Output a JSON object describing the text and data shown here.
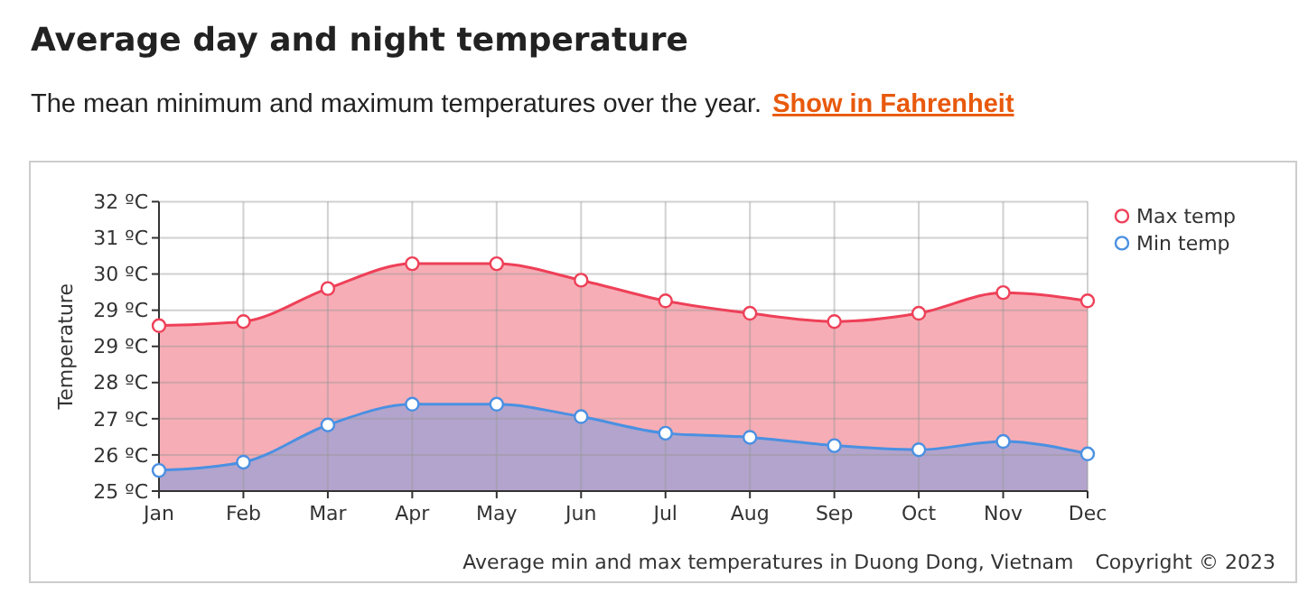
{
  "chart_data": {
    "type": "area",
    "title": "Average day and night temperature",
    "subtitle": "The mean minimum and maximum temperatures over the year.",
    "ylabel": "Temperature",
    "annotations": [
      "Show in Fahrenheit",
      "Average min and max temperatures in Duong Dong, Vietnam",
      "Copyright © 2023"
    ],
    "categories": [
      "Jan",
      "Feb",
      "Mar",
      "Apr",
      "May",
      "Jun",
      "Jul",
      "Aug",
      "Sep",
      "Oct",
      "Nov",
      "Dec"
    ],
    "series": [
      {
        "name": "Max temp",
        "color": "#ee4058",
        "values": [
          29.0,
          29.1,
          29.9,
          30.5,
          30.5,
          30.1,
          29.6,
          29.3,
          29.1,
          29.3,
          29.8,
          29.6
        ]
      },
      {
        "name": "Min temp",
        "color": "#4a90e2",
        "values": [
          25.5,
          25.7,
          26.6,
          27.1,
          27.1,
          26.8,
          26.4,
          26.3,
          26.1,
          26.0,
          26.2,
          25.9
        ]
      }
    ],
    "ylim": [
      25,
      32
    ],
    "yticks": [
      {
        "value": 25,
        "label": "25 ºC"
      },
      {
        "value": 25.875,
        "label": "26 ºC"
      },
      {
        "value": 26.75,
        "label": "27 ºC"
      },
      {
        "value": 27.625,
        "label": "28 ºC"
      },
      {
        "value": 28.5,
        "label": "29 ºC"
      },
      {
        "value": 29.375,
        "label": "29 ºC"
      },
      {
        "value": 30.25,
        "label": "30 ºC"
      },
      {
        "value": 31.125,
        "label": "31 ºC"
      },
      {
        "value": 32,
        "label": "32 ºC"
      }
    ],
    "grid": true,
    "legend": "top right",
    "marker": "circle"
  }
}
